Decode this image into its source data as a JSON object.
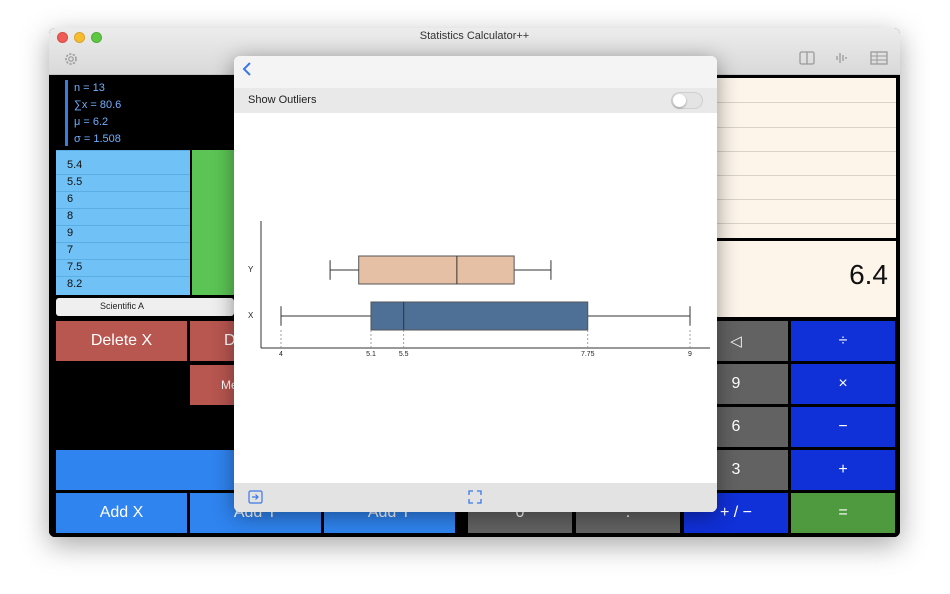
{
  "window": {
    "title": "Statistics Calculator++"
  },
  "toolbar": {
    "settings_icon": "gear-icon",
    "right_icons": [
      "split-view-icon",
      "waveform-icon",
      "table-icon"
    ]
  },
  "stats": {
    "lines": [
      "n = 13",
      "∑x = 80.6",
      "μ = 6.2",
      "σ = 1.508"
    ]
  },
  "data_column": {
    "values": [
      "5.4",
      "5.5",
      "6",
      "8",
      "9",
      "7",
      "7.5",
      "8.2"
    ]
  },
  "mode_segment": {
    "label": "Scientific A"
  },
  "buttons": {
    "delete_x": "Delete X",
    "delete_partial": "D",
    "mean_partial": "Me",
    "add_x": "Add X",
    "add_y": "Add Y",
    "add_y2": "Add Y",
    "zero": "0",
    "decimal": ".",
    "plus_minus": "+ / −",
    "equals": "=",
    "backspace": "◁",
    "divide": "÷",
    "nine": "9",
    "multiply": "×",
    "six": "6",
    "minus": "−",
    "three": "3",
    "plus": "+"
  },
  "display": {
    "value": "6.4"
  },
  "modal": {
    "back_icon": "chevron-left-icon",
    "option_label": "Show Outliers",
    "show_outliers": false,
    "footer_icons": [
      "export-icon",
      "fullscreen-icon"
    ]
  },
  "colors": {
    "x_box": "#4e6f96",
    "y_box": "#e6c0a4",
    "red_button": "#b85650",
    "blue_button": "#2f84f0",
    "operator": "#1030d8",
    "equals": "#4f9a3e"
  },
  "chart_data": {
    "type": "boxplot",
    "orientation": "horizontal",
    "series": [
      {
        "name": "Y",
        "whisker_low": 4.6,
        "q1": 4.95,
        "median": 6.15,
        "q3": 6.85,
        "whisker_high": 7.3
      },
      {
        "name": "X",
        "whisker_low": 4,
        "q1": 5.1,
        "median": 5.5,
        "q3": 7.75,
        "whisker_high": 9
      }
    ],
    "x_ticks": [
      "4",
      "5.1",
      "5.5",
      "7.75",
      "9"
    ],
    "xlim": [
      4,
      9
    ]
  }
}
